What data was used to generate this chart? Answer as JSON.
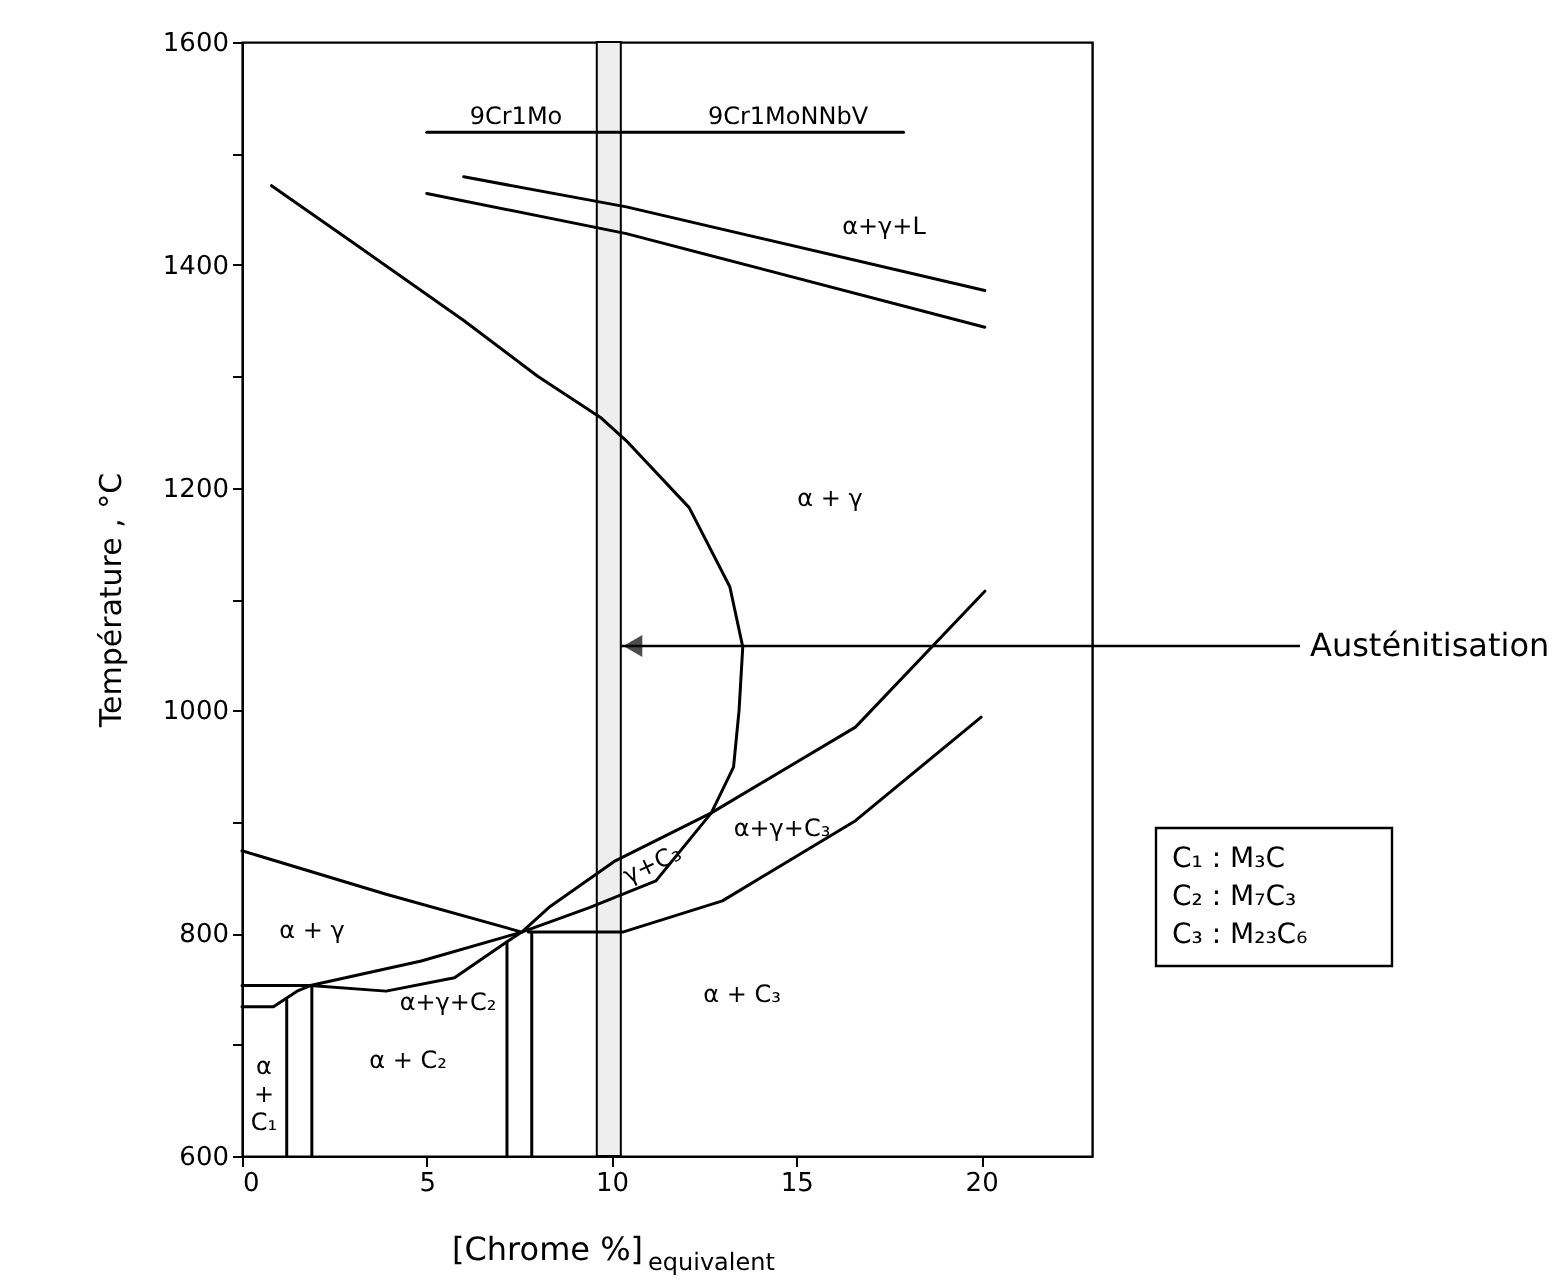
{
  "chart_data": {
    "type": "line",
    "xlabel": "[Chrome %]$_{equivalent}$",
    "ylabel": "Température , °C",
    "xlim": [
      0,
      23
    ],
    "ylim": [
      600,
      1600
    ],
    "xticks": [
      0,
      5,
      10,
      15,
      20
    ],
    "yticks": [
      600,
      {
        "value": 700,
        "label": null
      },
      800,
      {
        "value": 900,
        "label": null
      },
      1000,
      {
        "value": 1100,
        "label": null
      },
      1200,
      {
        "value": 1300,
        "label": null
      },
      1400,
      {
        "value": 1500,
        "label": null
      },
      1600
    ],
    "grid": false,
    "legend": false,
    "line_style": "solid",
    "series": [
      {
        "color": "#000000",
        "x": [
          6.0,
          10.4,
          20.1
        ],
        "values": [
          1479,
          1452,
          1377
        ]
      },
      {
        "color": "#000000",
        "x": [
          5.0,
          10.4,
          20.1
        ],
        "values": [
          1464,
          1428,
          1344
        ]
      },
      {
        "color": "#000000",
        "x": [
          0.8,
          3,
          6,
          8,
          9.7,
          10.4,
          12.1,
          13.2,
          13.55,
          13.45,
          13.3,
          12.7,
          11.2,
          9.4,
          7.57,
          4.85,
          1.85,
          0
        ],
        "values": [
          1471,
          1420,
          1350,
          1300,
          1263,
          1242,
          1182,
          1111,
          1057,
          1000,
          949,
          908,
          847,
          823,
          801,
          775,
          753,
          753
        ]
      },
      {
        "color": "#000000",
        "x": [
          1.85,
          3.9,
          5.75,
          7.2,
          7.57,
          8.3,
          10.1,
          12.7,
          16.6,
          20.1
        ],
        "values": [
          753,
          748,
          760,
          793,
          801,
          823,
          865,
          908,
          985,
          1107
        ]
      },
      {
        "color": "#000000",
        "x": [
          7.75,
          10.3,
          13.0,
          16.6,
          20.0
        ],
        "values": [
          801,
          801,
          829,
          901,
          994
        ]
      },
      {
        "color": "#000000",
        "x": [
          0,
          3.9,
          7.57
        ],
        "values": [
          874,
          835,
          801
        ]
      },
      {
        "color": "#000000",
        "x": [
          0,
          0.85,
          1.49,
          1.85
        ],
        "values": [
          734,
          734,
          748,
          753
        ]
      },
      {
        "color": "#000000",
        "x": [
          1.21,
          1.21
        ],
        "values": [
          600,
          740
        ]
      },
      {
        "color": "#000000",
        "x": [
          1.89,
          1.89
        ],
        "values": [
          600,
          753
        ]
      },
      {
        "color": "#000000",
        "x": [
          7.17,
          7.17
        ],
        "values": [
          600,
          792
        ]
      },
      {
        "color": "#000000",
        "x": [
          7.84,
          7.84
        ],
        "values": [
          600,
          801
        ]
      },
      {
        "color": "#000000",
        "x": [
          5.0,
          17.9
        ],
        "values": [
          1519,
          1519
        ]
      }
    ],
    "bands": [
      {
        "axis": "x",
        "from": 9.6,
        "to": 10.25,
        "label": "Austénitisation",
        "color": "#eeeeee"
      }
    ],
    "annotations": [
      "9Cr1Mo",
      "9Cr1MoNNbV",
      "α+γ+L",
      "α + γ",
      "α+γ+C₃",
      "γ+C₃",
      "α + γ",
      "α+γ+C₂",
      "α + C₂",
      "α + C₃",
      "α\n+\nC₁",
      "C₁ : M₃C",
      "C₂ : M₇C₃",
      "C₃ : M₂₃C₆"
    ]
  }
}
